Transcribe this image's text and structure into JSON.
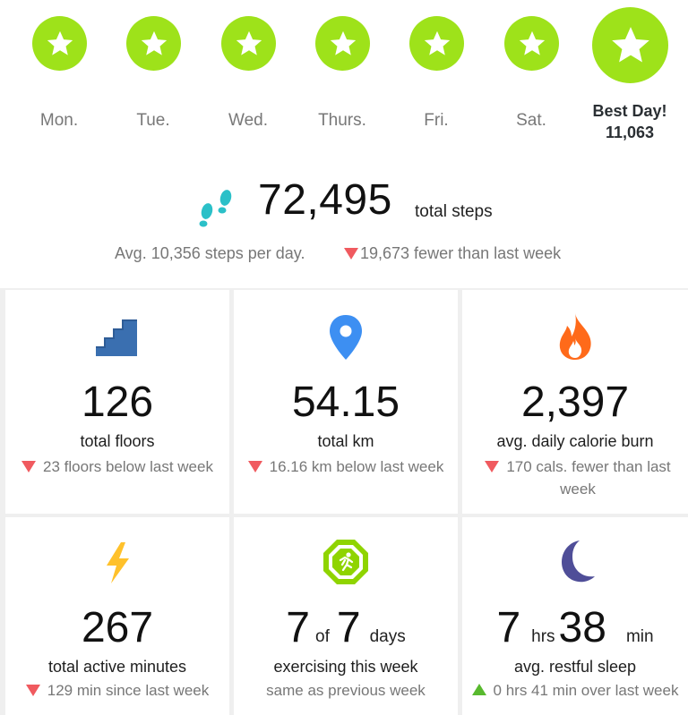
{
  "week": {
    "days": [
      {
        "label": "Mon."
      },
      {
        "label": "Tue."
      },
      {
        "label": "Wed."
      },
      {
        "label": "Thurs."
      },
      {
        "label": "Fri."
      },
      {
        "label": "Sat."
      }
    ],
    "best": {
      "label": "Best Day!",
      "value": "11,063"
    }
  },
  "steps": {
    "total": "72,495",
    "unit": "total steps",
    "average": "Avg. 10,356 steps per day.",
    "delta": "19,673 fewer than last week"
  },
  "tiles": {
    "floors": {
      "value": "126",
      "label": "total floors",
      "sub": "23 floors below last week"
    },
    "km": {
      "value": "54.15",
      "label": "total km",
      "sub": "16.16 km below last week"
    },
    "calories": {
      "value": "2,397",
      "label": "avg. daily calorie burn",
      "sub": "170 cals. fewer than last week"
    },
    "active": {
      "value": "267",
      "label": "total active minutes",
      "sub": "129 min since last week"
    },
    "exercise": {
      "count": "7",
      "of": "of",
      "total": "7",
      "unit": "days",
      "label": "exercising this week",
      "sub": "same as previous week"
    },
    "sleep": {
      "hrs": "7",
      "hrs_unit": "hrs",
      "min": "38",
      "min_unit": "min",
      "label": "avg. restful sleep",
      "sub": "0 hrs 41 min over last week"
    }
  },
  "colors": {
    "star_badge": "#9ee21a",
    "down": "#f05a5f",
    "up": "#58b92e",
    "stairs": "#3a6fb0",
    "pin": "#3d8ff2",
    "flame": "#ff6a1a",
    "bolt": "#ffc12b",
    "exercise": "#8fd400",
    "moon": "#4f4e98",
    "footprints": "#2bc0c8"
  }
}
